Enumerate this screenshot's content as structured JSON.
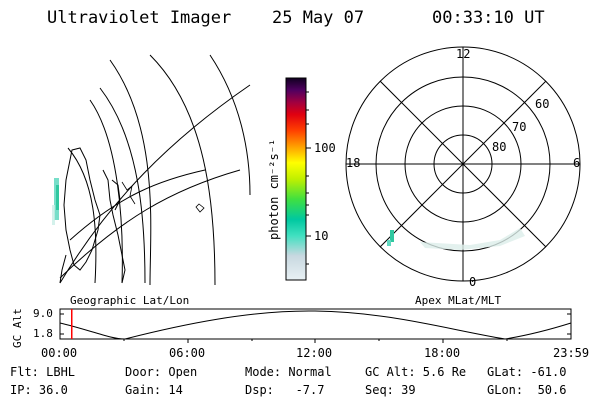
{
  "header": {
    "instrument": "Ultraviolet Imager",
    "date": "25 May 07",
    "time": "00:33:10 UT"
  },
  "colorbar": {
    "label": "photon cm⁻²s⁻¹",
    "ticks": [
      "100",
      "10"
    ]
  },
  "polar_plot": {
    "mlt_labels": {
      "top": "12",
      "left": "18",
      "right": "6",
      "bottom": "0"
    },
    "lat_labels": [
      "60",
      "70",
      "80"
    ],
    "title": "Apex MLat/MLT"
  },
  "geo_plot": {
    "title": "Geographic Lat/Lon"
  },
  "altitude_strip": {
    "axis_label": "GC Alt",
    "y_ticks": [
      "9.0",
      "1.8"
    ],
    "x_ticks": [
      "00:00",
      "06:00",
      "12:00",
      "18:00",
      "23:59"
    ],
    "current_time_fraction": 0.023
  },
  "footer": {
    "row1": {
      "flt": "Flt: LBHL",
      "door": "Door: Open",
      "mode": "Mode: Normal",
      "gcalt": "GC Alt: 5.6 Re",
      "glat": "GLat: -61.0"
    },
    "row2": {
      "ip": "IP: 36.0",
      "gain": "Gain: 14",
      "dsp": "Dsp:   -7.7",
      "seq": "Seq: 39",
      "glon": "GLon:  50.6"
    }
  }
}
